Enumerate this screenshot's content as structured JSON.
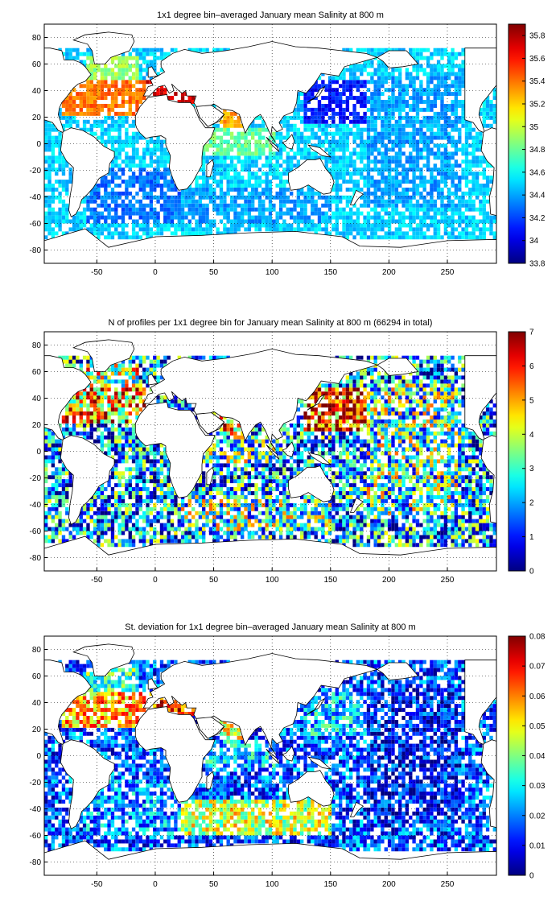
{
  "figure": {
    "panels": [
      {
        "id": "mean-salinity",
        "title": "1x1 degree bin–averaged January mean Salinity at 800 m",
        "x_range": [
          -95,
          292
        ],
        "y_range": [
          -90,
          90
        ],
        "x_ticks": [
          "-50",
          "0",
          "50",
          "100",
          "150",
          "200",
          "250"
        ],
        "x_tick_values": [
          -50,
          0,
          50,
          100,
          150,
          200,
          250
        ],
        "y_ticks": [
          "80",
          "60",
          "40",
          "20",
          "0",
          "-20",
          "-40",
          "-60",
          "-80"
        ],
        "y_tick_values": [
          80,
          60,
          40,
          20,
          0,
          -20,
          -40,
          -60,
          -80
        ],
        "grid": "dotted",
        "colorbar": {
          "min": 33.8,
          "max": 35.9,
          "tick_labels": [
            "35.8",
            "35.6",
            "35.4",
            "35.2",
            "35",
            "34.8",
            "34.6",
            "34.4",
            "34.2",
            "34",
            "33.8"
          ],
          "tick_values": [
            35.8,
            35.6,
            35.4,
            35.2,
            35.0,
            34.8,
            34.6,
            34.4,
            34.2,
            34.0,
            33.8
          ],
          "colormap": "jet"
        }
      },
      {
        "id": "n-profiles",
        "title": "N of profiles per 1x1 degree bin for January mean Salinity at 800 m (66294 in total)",
        "x_range": [
          -95,
          292
        ],
        "y_range": [
          -90,
          90
        ],
        "x_ticks": [
          "-50",
          "0",
          "50",
          "100",
          "150",
          "200",
          "250"
        ],
        "x_tick_values": [
          -50,
          0,
          50,
          100,
          150,
          200,
          250
        ],
        "y_ticks": [
          "80",
          "60",
          "40",
          "20",
          "0",
          "-20",
          "-40",
          "-60",
          "-80"
        ],
        "y_tick_values": [
          80,
          60,
          40,
          20,
          0,
          -20,
          -40,
          -60,
          -80
        ],
        "grid": "dotted",
        "colorbar": {
          "min": 0,
          "max": 7,
          "tick_labels": [
            "7",
            "6",
            "5",
            "4",
            "3",
            "2",
            "1",
            "0"
          ],
          "tick_values": [
            7,
            6,
            5,
            4,
            3,
            2,
            1,
            0
          ],
          "colormap": "jet"
        }
      },
      {
        "id": "std-salinity",
        "title": "St. deviation for 1x1 degree bin–averaged January mean Salinity at 800 m",
        "x_range": [
          -95,
          292
        ],
        "y_range": [
          -90,
          90
        ],
        "x_ticks": [
          "-50",
          "0",
          "50",
          "100",
          "150",
          "200",
          "250"
        ],
        "x_tick_values": [
          -50,
          0,
          50,
          100,
          150,
          200,
          250
        ],
        "y_ticks": [
          "80",
          "60",
          "40",
          "20",
          "0",
          "-20",
          "-40",
          "-60",
          "-80"
        ],
        "y_tick_values": [
          80,
          60,
          40,
          20,
          0,
          -20,
          -40,
          -60,
          -80
        ],
        "grid": "dotted",
        "colorbar": {
          "min": 0,
          "max": 0.08,
          "tick_labels": [
            "0.08",
            "0.07",
            "0.06",
            "0.05",
            "0.04",
            "0.03",
            "0.02",
            "0.01",
            "0"
          ],
          "tick_values": [
            0.08,
            0.07,
            0.06,
            0.05,
            0.04,
            0.03,
            0.02,
            0.01,
            0
          ],
          "colormap": "jet"
        }
      }
    ],
    "regions": [
      {
        "lon": [
          -80,
          -10
        ],
        "lat": [
          20,
          45
        ],
        "values": [
          35.4,
          5,
          0.05
        ]
      },
      {
        "lon": [
          -60,
          -15
        ],
        "lat": [
          45,
          65
        ],
        "values": [
          34.9,
          4,
          0.03
        ]
      },
      {
        "lon": [
          -10,
          35
        ],
        "lat": [
          30,
          45
        ],
        "values": [
          35.7,
          2,
          0.06
        ]
      },
      {
        "lon": [
          55,
          75
        ],
        "lat": [
          10,
          25
        ],
        "values": [
          35.3,
          5,
          0.04
        ]
      },
      {
        "lon": [
          40,
          100
        ],
        "lat": [
          -10,
          10
        ],
        "values": [
          34.8,
          3,
          0.02
        ]
      },
      {
        "lon": [
          125,
          180
        ],
        "lat": [
          15,
          45
        ],
        "values": [
          34.1,
          6,
          0.02
        ]
      },
      {
        "lon": [
          180,
          260
        ],
        "lat": [
          -50,
          50
        ],
        "values": [
          34.4,
          3,
          0.005
        ]
      },
      {
        "lon": [
          -60,
          20
        ],
        "lat": [
          -60,
          -20
        ],
        "values": [
          34.3,
          2,
          0.015
        ]
      },
      {
        "lon": [
          20,
          150
        ],
        "lat": [
          -60,
          -35
        ],
        "values": [
          34.4,
          3,
          0.04
        ]
      },
      {
        "lon": [
          -95,
          290
        ],
        "lat": [
          -72,
          70
        ],
        "values": [
          34.5,
          2,
          0.01
        ]
      }
    ]
  }
}
